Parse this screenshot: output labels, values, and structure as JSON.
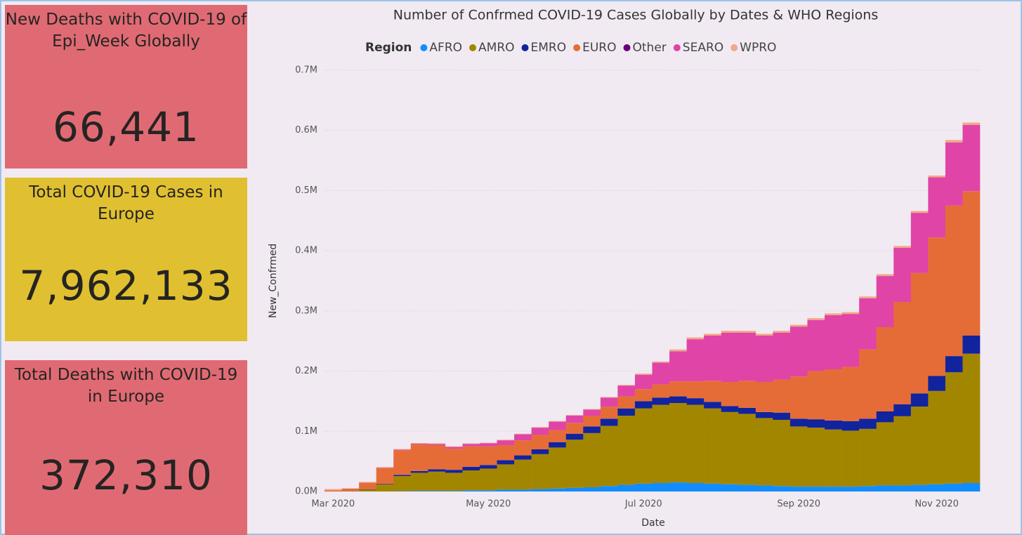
{
  "cards": [
    {
      "title": "New Deaths with COVID-19 of Epi_Week Globally",
      "value": "66,441"
    },
    {
      "title": "Total COVID-19 Cases in Europe",
      "value": "7,962,133"
    },
    {
      "title": "Total Deaths with COVID-19 in Europe",
      "value": "372,310"
    }
  ],
  "chart_data": {
    "type": "stacked_bar",
    "title": "Number of Confrmed COVID-19 Cases Globally by Dates & WHO Regions",
    "legend_title": "Region",
    "y_label": "New_Confrmed",
    "x_label": "Date",
    "categories": [
      "Mar 2020",
      null,
      null,
      null,
      null,
      null,
      null,
      null,
      null,
      "May 2020",
      null,
      null,
      null,
      null,
      null,
      null,
      null,
      null,
      "Jul 2020",
      null,
      null,
      null,
      null,
      null,
      null,
      null,
      null,
      "Sep 2020",
      null,
      null,
      null,
      null,
      null,
      null,
      null,
      "Nov 2020",
      null,
      null
    ],
    "ylim": [
      0,
      700000
    ],
    "yticks": [
      {
        "value": 0,
        "label": "0.0M"
      },
      {
        "value": 100000,
        "label": "0.1M"
      },
      {
        "value": 200000,
        "label": "0.2M"
      },
      {
        "value": 300000,
        "label": "0.3M"
      },
      {
        "value": 400000,
        "label": "0.4M"
      },
      {
        "value": 500000,
        "label": "0.5M"
      },
      {
        "value": 600000,
        "label": "0.6M"
      },
      {
        "value": 700000,
        "label": "0.7M"
      }
    ],
    "grid": true,
    "series": [
      {
        "name": "AFRO",
        "color": "#118dff",
        "values": [
          0,
          0,
          0,
          0,
          500,
          1000,
          1000,
          1000,
          2000,
          2000,
          3000,
          3000,
          4000,
          5000,
          6000,
          7000,
          9000,
          11000,
          13000,
          14000,
          15000,
          14000,
          13000,
          12000,
          11000,
          10000,
          9000,
          8000,
          8000,
          8000,
          8000,
          9000,
          10000,
          10000,
          11000,
          12000,
          13000,
          14000
        ]
      },
      {
        "name": "AMRO",
        "color": "#a38600",
        "values": [
          0,
          500,
          3000,
          12000,
          25000,
          30000,
          32000,
          30000,
          33000,
          36000,
          42000,
          50000,
          58000,
          68000,
          80000,
          90000,
          100000,
          115000,
          125000,
          130000,
          132000,
          130000,
          125000,
          120000,
          118000,
          112000,
          110000,
          100000,
          98000,
          95000,
          93000,
          95000,
          105000,
          115000,
          130000,
          155000,
          185000,
          215000
        ]
      },
      {
        "name": "EMRO",
        "color": "#12239e",
        "values": [
          0,
          200,
          500,
          1000,
          2000,
          3000,
          4000,
          5000,
          6000,
          6000,
          7000,
          7000,
          8000,
          9000,
          10000,
          11000,
          12000,
          12000,
          12000,
          12000,
          11000,
          11000,
          11000,
          10000,
          10000,
          10000,
          12000,
          13000,
          14000,
          15000,
          16000,
          17000,
          18000,
          20000,
          22000,
          25000,
          27000,
          30000
        ]
      },
      {
        "name": "EURO",
        "color": "#e66c37",
        "values": [
          2000,
          4000,
          11000,
          26000,
          41000,
          44000,
          40000,
          35000,
          34000,
          31000,
          25000,
          25000,
          24000,
          20000,
          18000,
          18000,
          20000,
          20000,
          20000,
          22000,
          25000,
          28000,
          35000,
          40000,
          45000,
          50000,
          55000,
          70000,
          80000,
          85000,
          90000,
          115000,
          140000,
          170000,
          200000,
          230000,
          250000,
          240000
        ]
      },
      {
        "name": "Other",
        "color": "#6b007b",
        "values": [
          0,
          0,
          0,
          0,
          0,
          0,
          0,
          0,
          0,
          0,
          0,
          0,
          0,
          0,
          0,
          0,
          0,
          0,
          0,
          0,
          0,
          0,
          0,
          0,
          0,
          0,
          0,
          0,
          0,
          0,
          0,
          0,
          0,
          0,
          0,
          0,
          0,
          0
        ]
      },
      {
        "name": "SEARO",
        "color": "#e044a7",
        "values": [
          0,
          0,
          300,
          500,
          1000,
          1500,
          2000,
          3000,
          4000,
          5000,
          8000,
          10000,
          12000,
          14000,
          12000,
          10000,
          15000,
          18000,
          24000,
          36000,
          50000,
          70000,
          75000,
          82000,
          80000,
          77000,
          78000,
          83000,
          85000,
          90000,
          88000,
          85000,
          85000,
          90000,
          100000,
          100000,
          105000,
          110000
        ]
      },
      {
        "name": "WPRO",
        "color": "#f0a987",
        "values": [
          2000,
          500,
          1000,
          1000,
          1000,
          1000,
          1000,
          1000,
          1000,
          1000,
          1000,
          1000,
          1000,
          1000,
          1000,
          1000,
          1000,
          1000,
          2000,
          2000,
          3000,
          3000,
          3000,
          3000,
          3000,
          3000,
          3000,
          3000,
          3000,
          3000,
          3000,
          3000,
          3000,
          3000,
          3000,
          3000,
          4000,
          4000
        ]
      }
    ]
  }
}
